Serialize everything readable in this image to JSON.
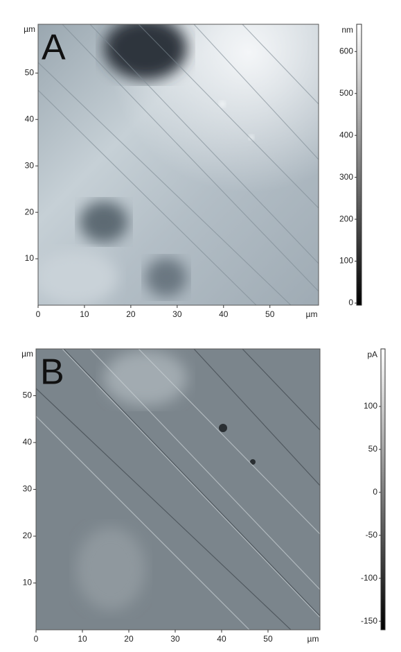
{
  "chart_data": [
    {
      "type": "image",
      "label": "A",
      "x_unit": "µm",
      "y_unit": "µm",
      "xlim": [
        0,
        60.5
      ],
      "xticks": [
        0,
        10,
        20,
        30,
        40,
        50
      ],
      "ylim": [
        0,
        60.5
      ],
      "yticks": [
        10,
        20,
        30,
        40,
        50
      ],
      "colorbar": {
        "unit": "nm",
        "lim": [
          -5,
          665
        ],
        "ticks": [
          0,
          100,
          200,
          300,
          400,
          500,
          600
        ]
      }
    },
    {
      "type": "image",
      "label": "B",
      "x_unit": "µm",
      "y_unit": "µm",
      "xlim": [
        0,
        61.2
      ],
      "xticks": [
        0,
        10,
        20,
        30,
        40,
        50
      ],
      "ylim": [
        0,
        60
      ],
      "yticks": [
        10,
        20,
        30,
        40,
        50
      ],
      "colorbar": {
        "unit": "pA",
        "lim": [
          -160,
          167
        ],
        "ticks": [
          -150,
          -100,
          -50,
          0,
          50,
          100
        ]
      }
    }
  ]
}
